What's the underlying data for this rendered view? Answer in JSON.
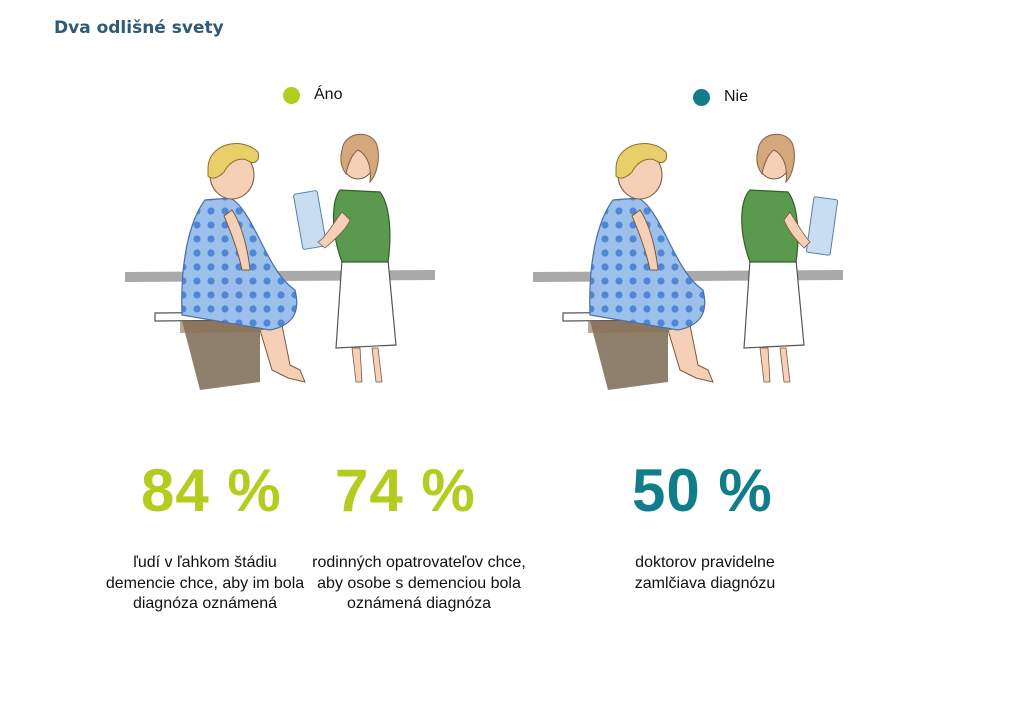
{
  "title": "Dva odlišné svety",
  "legend": {
    "yes": {
      "label": "Áno",
      "color": "#b4cc1e"
    },
    "no": {
      "label": "Nie",
      "color": "#117d8a"
    }
  },
  "stats": [
    {
      "value": "84 %",
      "description": "ľudí v ľahkom štádiu demencie chce, aby im bola diagnóza oznámená",
      "color": "#b4cc1e"
    },
    {
      "value": "74 %",
      "description": "rodinných opatrovateľov chce, aby osobe s demenciou bola oznámená diagnóza",
      "color": "#b4cc1e"
    },
    {
      "value": "50 %",
      "description": "doktorov pravidelne zamlčiava diagnózu",
      "color": "#117d8a"
    }
  ],
  "illustrations": [
    "patient-and-nurse-talking",
    "patient-and-nurse-silent"
  ]
}
